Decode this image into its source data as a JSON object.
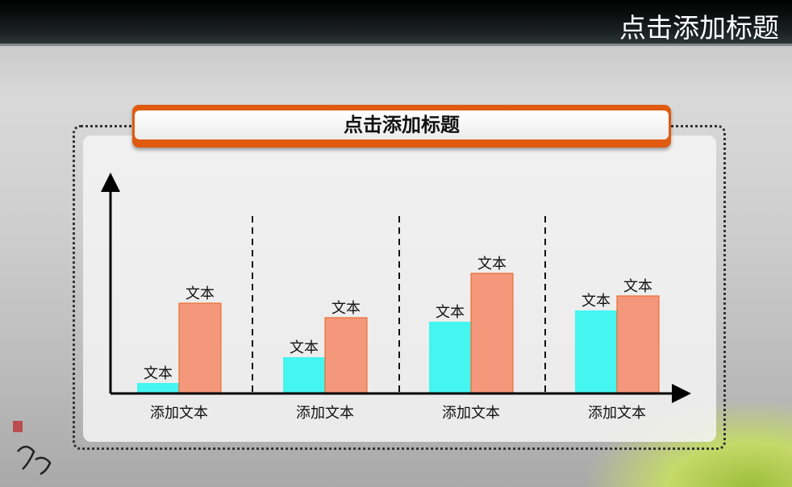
{
  "header": {
    "title": "点击添加标题"
  },
  "banner": {
    "title": "点击添加标题"
  },
  "colors": {
    "series_a": "#44f5f0",
    "series_b": "#f4977a",
    "series_b_border": "#e8601c",
    "banner": "#e05a10"
  },
  "chart_data": {
    "type": "bar",
    "title": "",
    "xlabel": "",
    "ylabel": "",
    "categories": [
      "添加文本",
      "添加文本",
      "添加文本",
      "添加文本"
    ],
    "series": [
      {
        "values": [
          13,
          45,
          89,
          103
        ],
        "labels": [
          "文本",
          "文本",
          "文本",
          "文本"
        ],
        "color": "#44f5f0"
      },
      {
        "values": [
          112,
          94,
          149,
          121
        ],
        "labels": [
          "文本",
          "文本",
          "文本",
          "文本"
        ],
        "color": "#f4977a"
      }
    ],
    "ylim": [
      0,
      266
    ],
    "grid": false,
    "group_separators": "dashed"
  }
}
